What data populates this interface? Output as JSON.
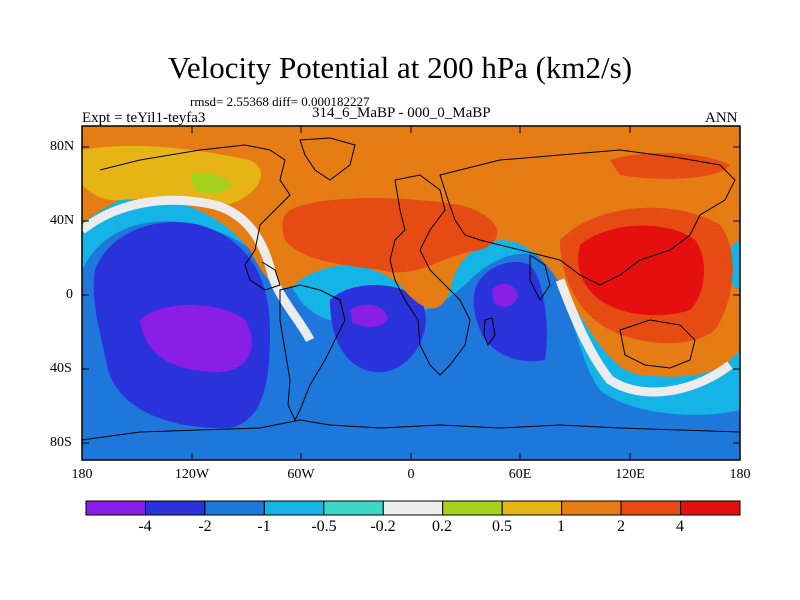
{
  "title": "Velocity Potential at 200 hPa (km2/s)",
  "stats": "rmsd= 2.55368 diff= 0.000182227",
  "experiment": "Expt = teYil1-teyfa3",
  "case_label": "314_6_MaBP - 000_0_MaBP",
  "season": "ANN",
  "latitude_labels": [
    "80N",
    "40N",
    "0",
    "40S",
    "80S"
  ],
  "longitude_labels": [
    "180",
    "120W",
    "60W",
    "0",
    "60E",
    "120E",
    "180"
  ],
  "colorbar": {
    "levels": [
      "-4",
      "-2",
      "-1",
      "-0.5",
      "-0.2",
      "0.2",
      "0.5",
      "1",
      "2",
      "4"
    ],
    "colors": [
      "#8a1ee6",
      "#2a32dc",
      "#1e78dc",
      "#14b4e6",
      "#3cd7c8",
      "#ececec",
      "#a5d21e",
      "#e6b414",
      "#e67d14",
      "#e64b14",
      "#e60f0f"
    ]
  },
  "fill_colors": {
    "very_strong_neg": "#8a1ee6",
    "strong_neg": "#2a32dc",
    "moderate_neg": "#1e78dc",
    "weak_neg": "#14b4e6",
    "near_zero": "#ececec",
    "weak_pos": "#a5d21e",
    "moderate_pos": "#e6b414",
    "positive": "#e67d14",
    "strong_pos": "#e64b14",
    "very_strong_pos": "#e60f0f"
  }
}
